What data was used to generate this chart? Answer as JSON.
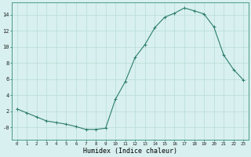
{
  "hours": [
    0,
    1,
    2,
    3,
    4,
    5,
    6,
    7,
    8,
    9,
    10,
    11,
    12,
    13,
    14,
    15,
    16,
    17,
    18,
    19,
    20,
    21,
    22,
    23
  ],
  "humidex": [
    2.3,
    1.8,
    1.3,
    0.8,
    0.6,
    0.4,
    0.1,
    -0.25,
    -0.25,
    -0.1,
    3.5,
    5.7,
    8.7,
    10.3,
    12.4,
    13.7,
    14.2,
    14.85,
    14.5,
    14.1,
    12.5,
    9.0,
    7.2,
    5.9
  ],
  "line_color": "#2d7d6e",
  "bg_color": "#d8f0ef",
  "grid_color": "#b8dcd8",
  "xlabel": "Humidex (Indice chaleur)",
  "ylim": [
    -1.5,
    15.5
  ],
  "xlim": [
    -0.5,
    23.5
  ],
  "yticks": [
    0,
    2,
    4,
    6,
    8,
    10,
    12,
    14
  ],
  "ytick_labels": [
    "-0",
    "2",
    "4",
    "6",
    "8",
    "10",
    "12",
    "14"
  ],
  "spine_color": "#4a9a8a"
}
